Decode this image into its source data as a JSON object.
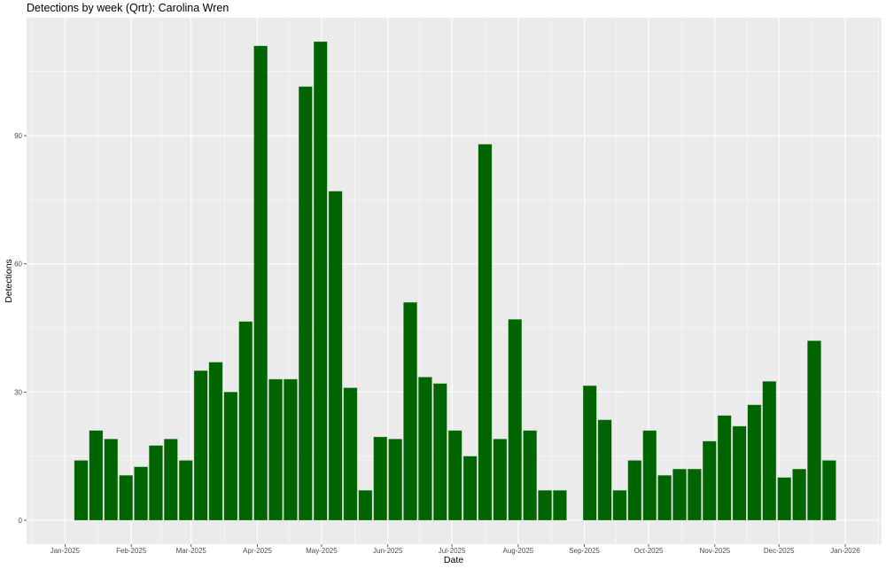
{
  "chart_data": {
    "type": "bar",
    "title": "Detections by week (Qrtr): Carolina Wren",
    "xlabel": "Date",
    "ylabel": "Detections",
    "xlim": [
      "2024-12-14",
      "2026-01-18"
    ],
    "ylim": [
      -5.6,
      117.6
    ],
    "grid": true,
    "legend": "none",
    "bar_color": "#006400",
    "panel_color": "#EBEBEB",
    "y_ticks": [
      0,
      30,
      60,
      90
    ],
    "y_tick_labels": [
      "0",
      "30",
      "60",
      "90"
    ],
    "x_ticks": [
      "2025-01-01",
      "2025-02-01",
      "2025-03-01",
      "2025-04-01",
      "2025-05-01",
      "2025-06-01",
      "2025-07-01",
      "2025-08-01",
      "2025-09-01",
      "2025-10-01",
      "2025-11-01",
      "2025-12-01",
      "2026-01-01"
    ],
    "x_tick_labels": [
      "Jan-2025",
      "Feb-2025",
      "Mar-2025",
      "Apr-2025",
      "May-2025",
      "Jun-2025",
      "Jul-2025",
      "Aug-2025",
      "Sep-2025",
      "Oct-2025",
      "Nov-2025",
      "Dec-2025",
      "Jan-2026"
    ],
    "weeks": [
      "2025-01-05",
      "2025-01-12",
      "2025-01-19",
      "2025-01-26",
      "2025-02-02",
      "2025-02-09",
      "2025-02-16",
      "2025-02-23",
      "2025-03-02",
      "2025-03-09",
      "2025-03-16",
      "2025-03-23",
      "2025-03-30",
      "2025-04-06",
      "2025-04-13",
      "2025-04-20",
      "2025-04-27",
      "2025-05-04",
      "2025-05-11",
      "2025-05-18",
      "2025-05-25",
      "2025-06-01",
      "2025-06-08",
      "2025-06-15",
      "2025-06-22",
      "2025-06-29",
      "2025-07-06",
      "2025-07-13",
      "2025-07-20",
      "2025-07-27",
      "2025-08-03",
      "2025-08-10",
      "2025-08-17",
      "2025-08-24",
      "2025-08-31",
      "2025-09-07",
      "2025-09-14",
      "2025-09-21",
      "2025-09-28",
      "2025-10-05",
      "2025-10-12",
      "2025-10-19",
      "2025-10-26",
      "2025-11-02",
      "2025-11-09",
      "2025-11-16",
      "2025-11-23",
      "2025-11-30",
      "2025-12-07",
      "2025-12-14",
      "2025-12-21"
    ],
    "values": [
      14,
      21,
      19,
      10.5,
      12.5,
      17.5,
      19,
      14,
      35,
      37,
      30,
      46.5,
      111,
      33,
      33,
      101.5,
      112,
      77,
      31,
      7,
      19.5,
      19,
      51,
      33.5,
      32,
      21,
      15,
      88,
      19,
      47,
      21,
      7,
      7,
      null,
      31.5,
      23.5,
      7,
      14,
      21,
      10.5,
      12,
      12,
      18.5,
      24.5,
      22,
      27,
      32.5,
      10,
      12,
      42,
      14
    ]
  }
}
